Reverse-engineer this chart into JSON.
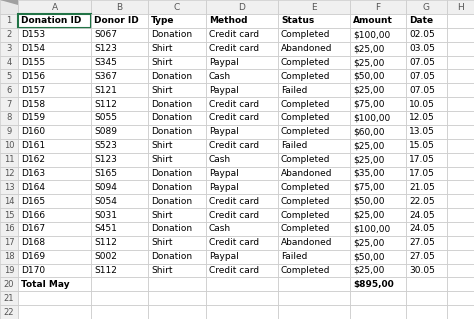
{
  "col_labels": [
    "",
    "A",
    "B",
    "C",
    "D",
    "E",
    "F",
    "G",
    "H"
  ],
  "headers": [
    "Donation ID",
    "Donor ID",
    "Type",
    "Method",
    "Status",
    "Amount",
    "Date"
  ],
  "rows": [
    [
      "D153",
      "S067",
      "Donation",
      "Credit card",
      "Completed",
      "$100,00",
      "02.05"
    ],
    [
      "D154",
      "S123",
      "Shirt",
      "Credit card",
      "Abandoned",
      "$25,00",
      "03.05"
    ],
    [
      "D155",
      "S345",
      "Shirt",
      "Paypal",
      "Completed",
      "$25,00",
      "07.05"
    ],
    [
      "D156",
      "S367",
      "Donation",
      "Cash",
      "Completed",
      "$50,00",
      "07.05"
    ],
    [
      "D157",
      "S121",
      "Shirt",
      "Paypal",
      "Failed",
      "$25,00",
      "07.05"
    ],
    [
      "D158",
      "S112",
      "Donation",
      "Credit card",
      "Completed",
      "$75,00",
      "10.05"
    ],
    [
      "D159",
      "S055",
      "Donation",
      "Credit card",
      "Completed",
      "$100,00",
      "12.05"
    ],
    [
      "D160",
      "S089",
      "Donation",
      "Paypal",
      "Completed",
      "$60,00",
      "13.05"
    ],
    [
      "D161",
      "S523",
      "Shirt",
      "Credit card",
      "Failed",
      "$25,00",
      "15.05"
    ],
    [
      "D162",
      "S123",
      "Shirt",
      "Cash",
      "Completed",
      "$25,00",
      "17.05"
    ],
    [
      "D163",
      "S165",
      "Donation",
      "Paypal",
      "Abandoned",
      "$35,00",
      "17.05"
    ],
    [
      "D164",
      "S094",
      "Donation",
      "Paypal",
      "Completed",
      "$75,00",
      "21.05"
    ],
    [
      "D165",
      "S054",
      "Donation",
      "Credit card",
      "Completed",
      "$50,00",
      "22.05"
    ],
    [
      "D166",
      "S031",
      "Shirt",
      "Credit card",
      "Completed",
      "$25,00",
      "24.05"
    ],
    [
      "D167",
      "S451",
      "Donation",
      "Cash",
      "Completed",
      "$100,00",
      "24.05"
    ],
    [
      "D168",
      "S112",
      "Shirt",
      "Credit card",
      "Abandoned",
      "$25,00",
      "27.05"
    ],
    [
      "D169",
      "S002",
      "Donation",
      "Paypal",
      "Failed",
      "$50,00",
      "27.05"
    ],
    [
      "D170",
      "S112",
      "Shirt",
      "Credit card",
      "Completed",
      "$25,00",
      "30.05"
    ]
  ],
  "total_row": [
    "Total May",
    "",
    "",
    "",
    "",
    "$895,00",
    ""
  ],
  "bg_color": "#ffffff",
  "col_header_bg": "#f0f0f0",
  "row_number_bg": "#f0f0f0",
  "corner_bg": "#e8e8e8",
  "grid_color": "#c8c8c8",
  "text_color": "#000000",
  "header_cell_border_color": "#217346",
  "n_data_cols": 7,
  "n_display_rows": 22,
  "figw": 4.74,
  "figh": 3.19,
  "dpi": 100
}
